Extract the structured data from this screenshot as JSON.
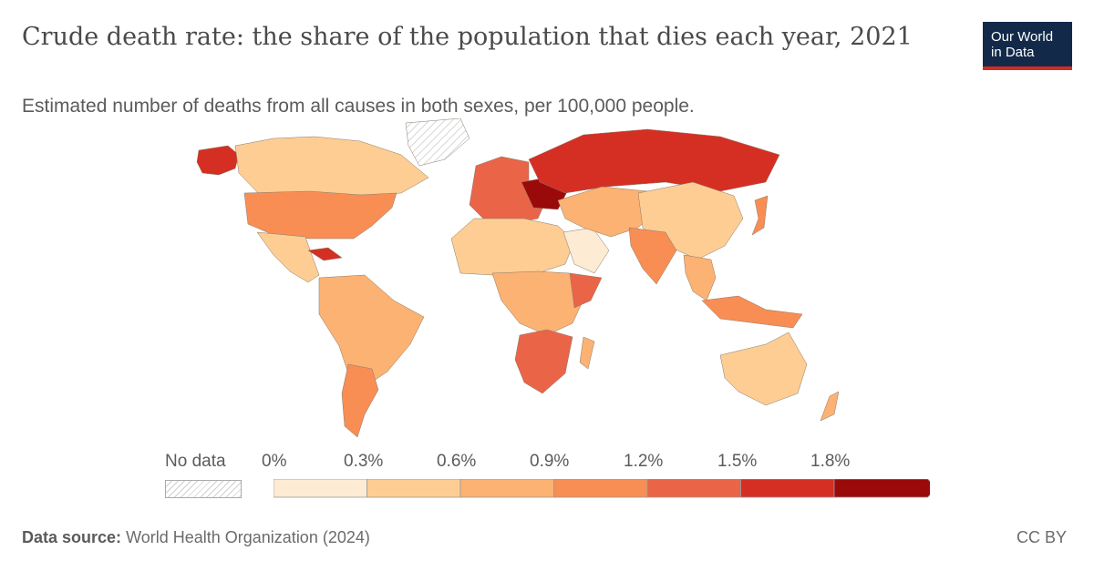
{
  "header": {
    "title": "Crude death rate: the share of the population that dies each year, 2021",
    "subtitle": "Estimated number of deaths from all causes in both sexes, per 100,000 people."
  },
  "logo": {
    "line1": "Our World",
    "line2": "in Data"
  },
  "legend": {
    "no_data_label": "No data",
    "ticks": [
      "0%",
      "0.3%",
      "0.6%",
      "0.9%",
      "1.2%",
      "1.5%",
      "1.8%"
    ],
    "colors": [
      "#fdebd3",
      "#fdcd94",
      "#fbb272",
      "#f88e54",
      "#ea6448",
      "#d52f24",
      "#9b0a0a"
    ]
  },
  "footer": {
    "source_label": "Data source:",
    "source_text": "World Health Organization (2024)",
    "license": "CC BY"
  },
  "regions": [
    {
      "name": "Alaska",
      "color": "#d52f24"
    },
    {
      "name": "Canada",
      "color": "#fdcd94"
    },
    {
      "name": "Greenland",
      "color": "no-data"
    },
    {
      "name": "United States",
      "color": "#f88e54"
    },
    {
      "name": "Mexico",
      "color": "#fdcd94"
    },
    {
      "name": "Cuba",
      "color": "#d52f24"
    },
    {
      "name": "South America",
      "color": "#fbb272"
    },
    {
      "name": "Argentina",
      "color": "#f88e54"
    },
    {
      "name": "Europe",
      "color": "#ea6448"
    },
    {
      "name": "Eastern Europe",
      "color": "#9b0a0a"
    },
    {
      "name": "Russia",
      "color": "#d52f24"
    },
    {
      "name": "North Africa",
      "color": "#fdcd94"
    },
    {
      "name": "Saudi Arabia",
      "color": "#fdebd3"
    },
    {
      "name": "Central Africa",
      "color": "#fbb272"
    },
    {
      "name": "Somalia",
      "color": "#ea6448"
    },
    {
      "name": "Southern Africa",
      "color": "#ea6448"
    },
    {
      "name": "Madagascar",
      "color": "#fbb272"
    },
    {
      "name": "Central Asia",
      "color": "#fbb272"
    },
    {
      "name": "China",
      "color": "#fdcd94"
    },
    {
      "name": "India",
      "color": "#f88e54"
    },
    {
      "name": "Southeast Asia",
      "color": "#fbb272"
    },
    {
      "name": "Japan",
      "color": "#f88e54"
    },
    {
      "name": "Indonesia",
      "color": "#f88e54"
    },
    {
      "name": "Australia",
      "color": "#fdcd94"
    },
    {
      "name": "New Zealand",
      "color": "#fbb272"
    }
  ]
}
